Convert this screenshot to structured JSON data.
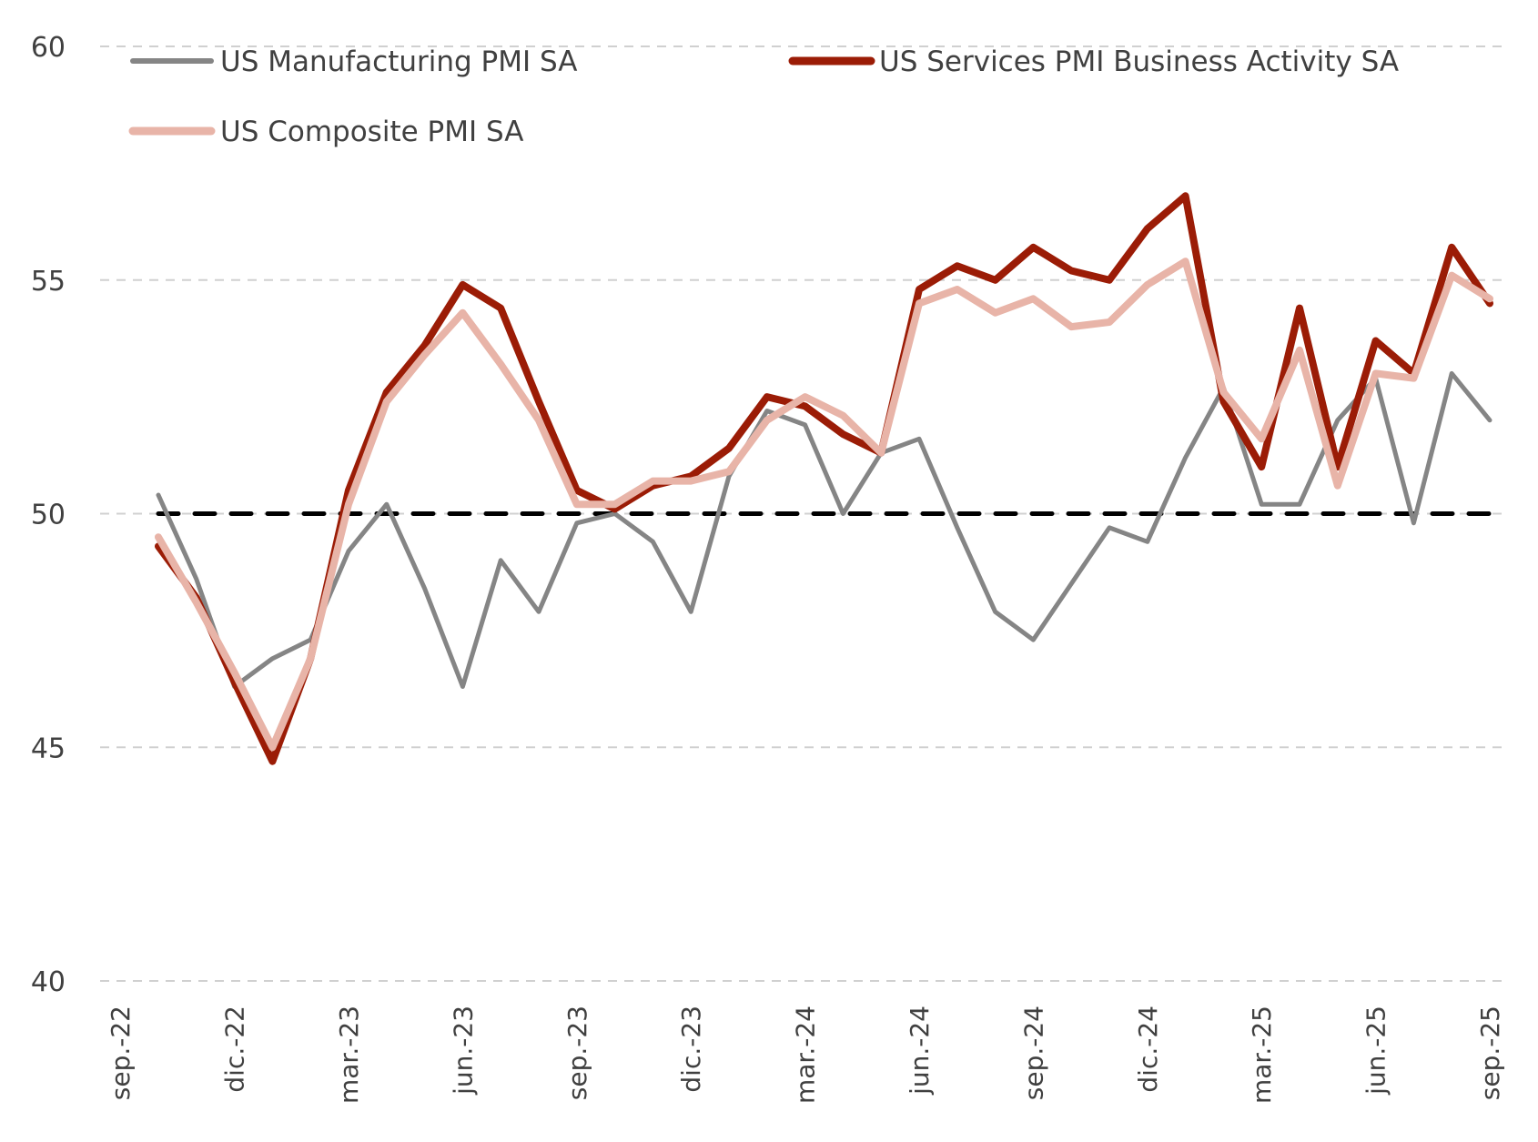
{
  "chart_data": {
    "type": "line",
    "title": "",
    "xlabel": "",
    "ylabel": "",
    "ylim": [
      40,
      60
    ],
    "yticks": [
      40,
      45,
      50,
      55,
      60
    ],
    "ytick_labels": [
      "40",
      "45",
      "50",
      "55",
      "60"
    ],
    "grid": true,
    "legend_position": "top",
    "x": [
      "oct.-22",
      "nov.-22",
      "dic.-22",
      "ene.-23",
      "feb.-23",
      "mar.-23",
      "abr.-23",
      "may.-23",
      "jun.-23",
      "jul.-23",
      "ago.-23",
      "sep.-23",
      "oct.-23",
      "nov.-23",
      "dic.-23",
      "ene.-24",
      "feb.-24",
      "mar.-24",
      "abr.-24",
      "may.-24",
      "jun.-24",
      "jul.-24",
      "ago.-24",
      "sep.-24",
      "oct.-24",
      "nov.-24",
      "dic.-24",
      "ene.-25",
      "feb.-25",
      "mar.-25",
      "abr.-25",
      "may.-25",
      "jun.-25",
      "jul.-25",
      "ago.-25",
      "sep.-25"
    ],
    "xtick_labels": [
      "sep.-22",
      "dic.-22",
      "mar.-23",
      "jun.-23",
      "sep.-23",
      "dic.-23",
      "mar.-24",
      "jun.-24",
      "sep.-24",
      "dic.-24",
      "mar.-25",
      "jun.-25",
      "sep.-25"
    ],
    "xtick_positions": [
      -1,
      2,
      5,
      8,
      11,
      14,
      17,
      20,
      23,
      26,
      29,
      32,
      35
    ],
    "reference_line": {
      "value": 50,
      "color": "#000000",
      "style": "dashed"
    },
    "series": [
      {
        "name": "US Manufacturing PMI SA",
        "color": "#858585",
        "values": [
          50.4,
          48.6,
          46.3,
          46.9,
          47.3,
          49.2,
          50.2,
          48.4,
          46.3,
          49.0,
          47.9,
          49.8,
          50.0,
          49.4,
          47.9,
          50.8,
          52.2,
          51.9,
          50.0,
          51.3,
          51.6,
          49.7,
          47.9,
          47.3,
          48.5,
          49.7,
          49.4,
          51.2,
          52.7,
          50.2,
          50.2,
          52.0,
          52.9,
          49.8,
          53.0,
          52.0
        ]
      },
      {
        "name": "US Services PMI Business Activity SA",
        "color": "#9b1c06",
        "values": [
          49.3,
          48.2,
          46.4,
          44.7,
          46.9,
          50.5,
          52.6,
          53.6,
          54.9,
          54.4,
          52.4,
          50.5,
          50.1,
          50.6,
          50.8,
          51.4,
          52.5,
          52.3,
          51.7,
          51.3,
          54.8,
          55.3,
          55.0,
          55.7,
          55.2,
          55.0,
          56.1,
          56.8,
          52.4,
          51.0,
          54.4,
          51.0,
          53.7,
          53.0,
          55.7,
          54.5
        ]
      },
      {
        "name": "US Composite PMI SA",
        "color": "#e8b4a8",
        "values": [
          49.5,
          48.1,
          46.6,
          45.0,
          46.9,
          50.2,
          52.4,
          53.4,
          54.3,
          53.2,
          52.0,
          50.2,
          50.2,
          50.7,
          50.7,
          50.9,
          52.0,
          52.5,
          52.1,
          51.3,
          54.5,
          54.8,
          54.3,
          54.6,
          54.0,
          54.1,
          54.9,
          55.4,
          52.6,
          51.6,
          53.5,
          50.6,
          53.0,
          52.9,
          55.1,
          54.6
        ]
      }
    ]
  }
}
